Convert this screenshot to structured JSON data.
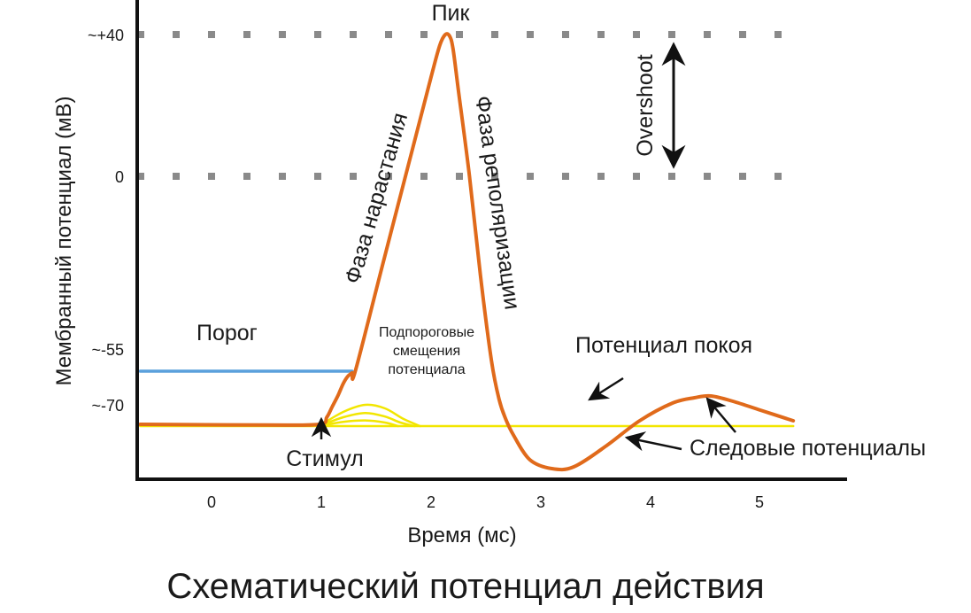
{
  "chart_data": {
    "type": "line",
    "title": "Схематический потенциал действия",
    "xlabel": "Время (мс)",
    "ylabel": "Мембранный потенциал (мВ)",
    "xlim": [
      -0.65,
      5.85
    ],
    "ylim": [
      -105,
      45
    ],
    "x_ticks": [
      0,
      1,
      2,
      3,
      4,
      5
    ],
    "x_tick_labels": [
      "0",
      "1",
      "2",
      "3",
      "4",
      "5"
    ],
    "y_ticks": [
      40,
      0,
      -55,
      -70
    ],
    "y_tick_labels": [
      "~+40",
      "0",
      "~-55",
      "~-70"
    ],
    "grid": false,
    "dotted_reference_lines": [
      40,
      0
    ],
    "series": [
      {
        "color": "#e06a1b",
        "x": [
          -0.65,
          0.5,
          0.98,
          1.05,
          1.1,
          1.15,
          1.2,
          1.24,
          1.28,
          1.31,
          1.55,
          1.8,
          2.0,
          2.08,
          2.13,
          2.17,
          2.2,
          2.25,
          2.35,
          2.45,
          2.55,
          2.62,
          2.68,
          2.75,
          2.9,
          3.1,
          3.3,
          3.6,
          3.9,
          4.2,
          4.4,
          4.55,
          4.75,
          5.0,
          5.3
        ],
        "y": [
          -70,
          -70.2,
          -70,
          -68,
          -65,
          -62,
          -58.5,
          -56.5,
          -55.5,
          -55,
          -26,
          4,
          28,
          37,
          40,
          39.5,
          36,
          24,
          0,
          -28,
          -52,
          -63,
          -68.5,
          -73,
          -80,
          -82.5,
          -82,
          -76,
          -69,
          -64,
          -62.5,
          -62,
          -63.5,
          -66,
          -69
        ]
      },
      {
        "name": "Порог",
        "color": "#5aa0dc",
        "x": [
          -0.65,
          1.28
        ],
        "y": [
          -55,
          -55
        ]
      },
      {
        "color": "#f2e600",
        "x": [
          -0.65,
          5.3
        ],
        "y": [
          -70.5,
          -70.5
        ]
      },
      {
        "color": "#f2e600",
        "x": [
          0.98,
          1.2,
          1.4,
          1.58,
          1.75,
          1.9
        ],
        "y": [
          -70.5,
          -66.5,
          -64.5,
          -65.5,
          -68.5,
          -70.5
        ]
      },
      {
        "color": "#f2e600",
        "x": [
          0.98,
          1.2,
          1.4,
          1.58,
          1.72,
          1.85
        ],
        "y": [
          -70.5,
          -68,
          -66.8,
          -67.8,
          -69.5,
          -70.5
        ]
      },
      {
        "color": "#f2e600",
        "x": [
          0.98,
          1.2,
          1.4,
          1.58,
          1.7
        ],
        "y": [
          -70.5,
          -69.3,
          -68.9,
          -69.5,
          -70.5
        ]
      }
    ],
    "annotations": {
      "peak": "Пик",
      "threshold": "Порог",
      "rising_phase": "Фаза нарастания",
      "repolarization": "Фаза реполяризации",
      "overshoot": "Overshoot",
      "subthreshold_1": "Подпороговые",
      "subthreshold_2": "смещения",
      "subthreshold_3": "потенциала",
      "resting": "Потенциал покоя",
      "stimulus": "Стимул",
      "after_potentials": "Следовые потенциалы"
    },
    "colors": {
      "action_potential": "#e06a1b",
      "threshold": "#5aa0dc",
      "subthreshold": "#f2e600",
      "reference_dots": "#8a8a8a",
      "axes": "#111111"
    }
  }
}
